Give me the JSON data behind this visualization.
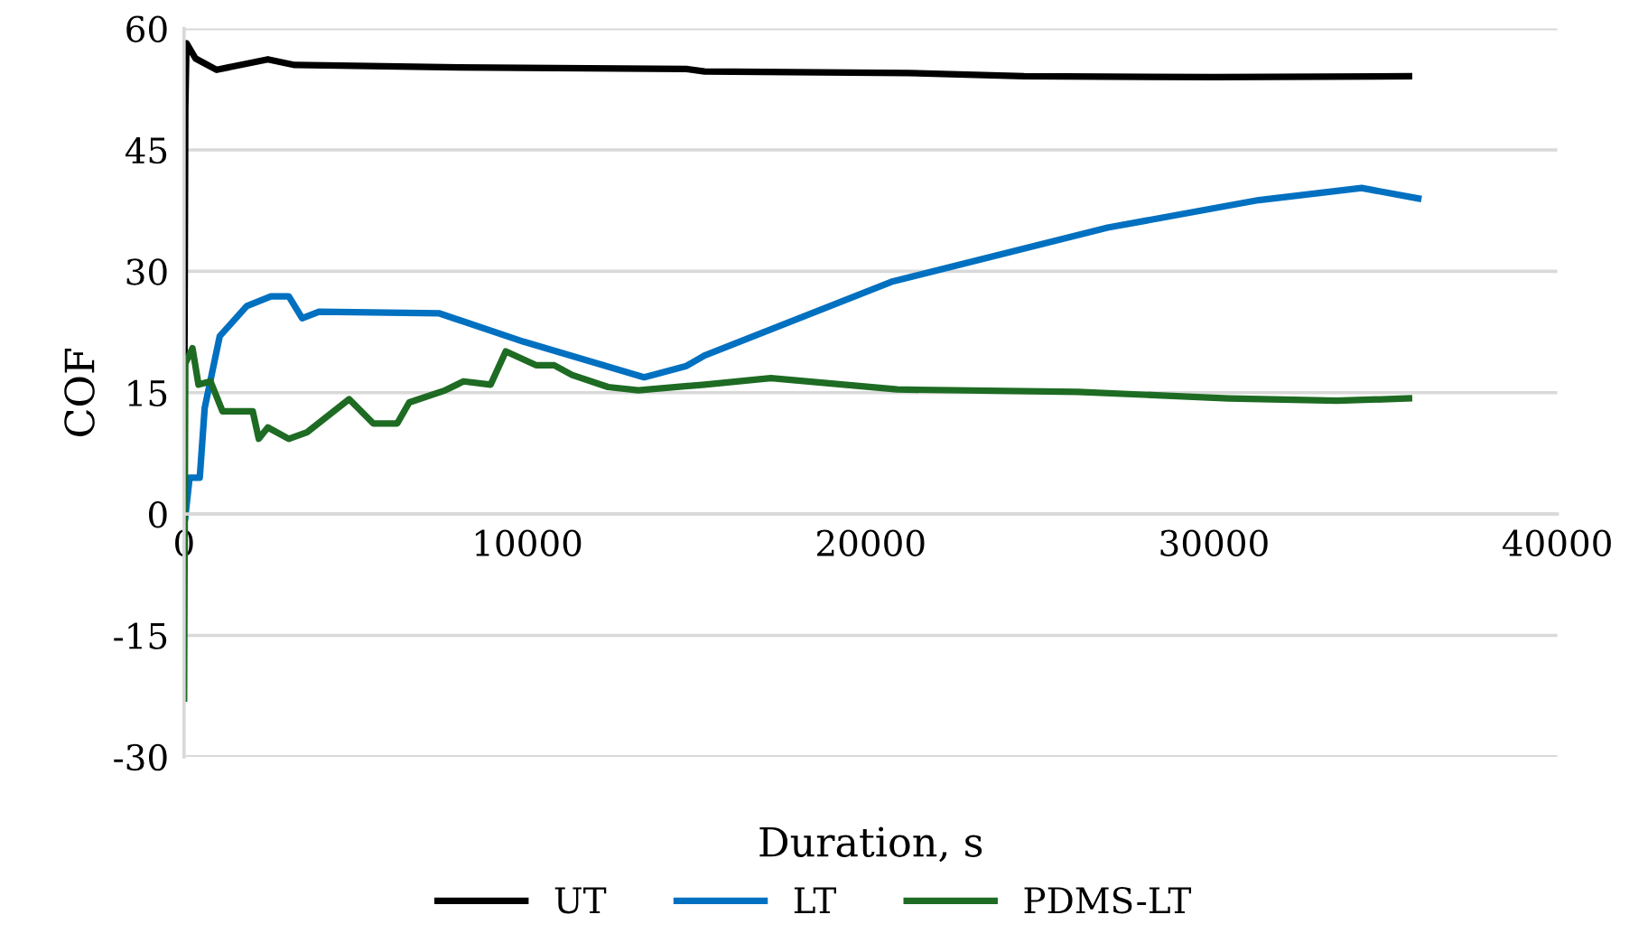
{
  "chart_data": {
    "type": "line",
    "xlabel": "Duration, s",
    "ylabel": "COF",
    "xlim": [
      0,
      40000
    ],
    "xticks": [
      0,
      10000,
      20000,
      30000,
      40000
    ],
    "ylim": [
      -30,
      60
    ],
    "yticks": [
      -30,
      -15,
      0,
      15,
      30,
      45,
      60
    ],
    "grid": "y",
    "legend": "bottom",
    "line_style": "solid",
    "marker": "none",
    "series": [
      {
        "name": "UT",
        "color": "#000000",
        "x": [
          0,
          35,
          70,
          333,
          950,
          2440,
          3220,
          8000,
          14630,
          15160,
          21100,
          24470,
          30000,
          35680
        ],
        "values": [
          5,
          50,
          58.2,
          56.3,
          54.9,
          56.2,
          55.5,
          55.2,
          55.0,
          54.7,
          54.5,
          54.1,
          54.0,
          54.1
        ]
      },
      {
        "name": "LT",
        "color": "#0070c0",
        "x": [
          35,
          160,
          457,
          600,
          1040,
          1825,
          2530,
          3050,
          3440,
          3930,
          7440,
          9890,
          13400,
          14630,
          15160,
          20600,
          26900,
          31300,
          34300,
          35950
        ],
        "values": [
          -0.4,
          4.5,
          4.5,
          13.1,
          22.0,
          25.7,
          26.9,
          26.9,
          24.2,
          25.0,
          24.8,
          21.3,
          16.9,
          18.3,
          19.6,
          28.7,
          35.4,
          38.8,
          40.3,
          39.0
        ]
      },
      {
        "name": "PDMS-LT",
        "color": "#1e6b23",
        "x": [
          0,
          35,
          245,
          420,
          770,
          1120,
          2000,
          2175,
          2440,
          3050,
          3580,
          4810,
          5510,
          6210,
          6560,
          7610,
          8140,
          8930,
          9370,
          10250,
          10780,
          11300,
          12350,
          13230,
          15160,
          17090,
          20770,
          26040,
          30420,
          33580,
          35680
        ],
        "values": [
          -22.8,
          18.6,
          20.5,
          16.0,
          16.4,
          12.7,
          12.7,
          9.3,
          10.7,
          9.3,
          10.1,
          14.2,
          11.2,
          11.2,
          13.8,
          15.3,
          16.4,
          16.0,
          20.1,
          18.4,
          18.4,
          17.2,
          15.7,
          15.3,
          16.0,
          16.8,
          15.4,
          15.1,
          14.3,
          14.0,
          14.3
        ]
      }
    ]
  }
}
